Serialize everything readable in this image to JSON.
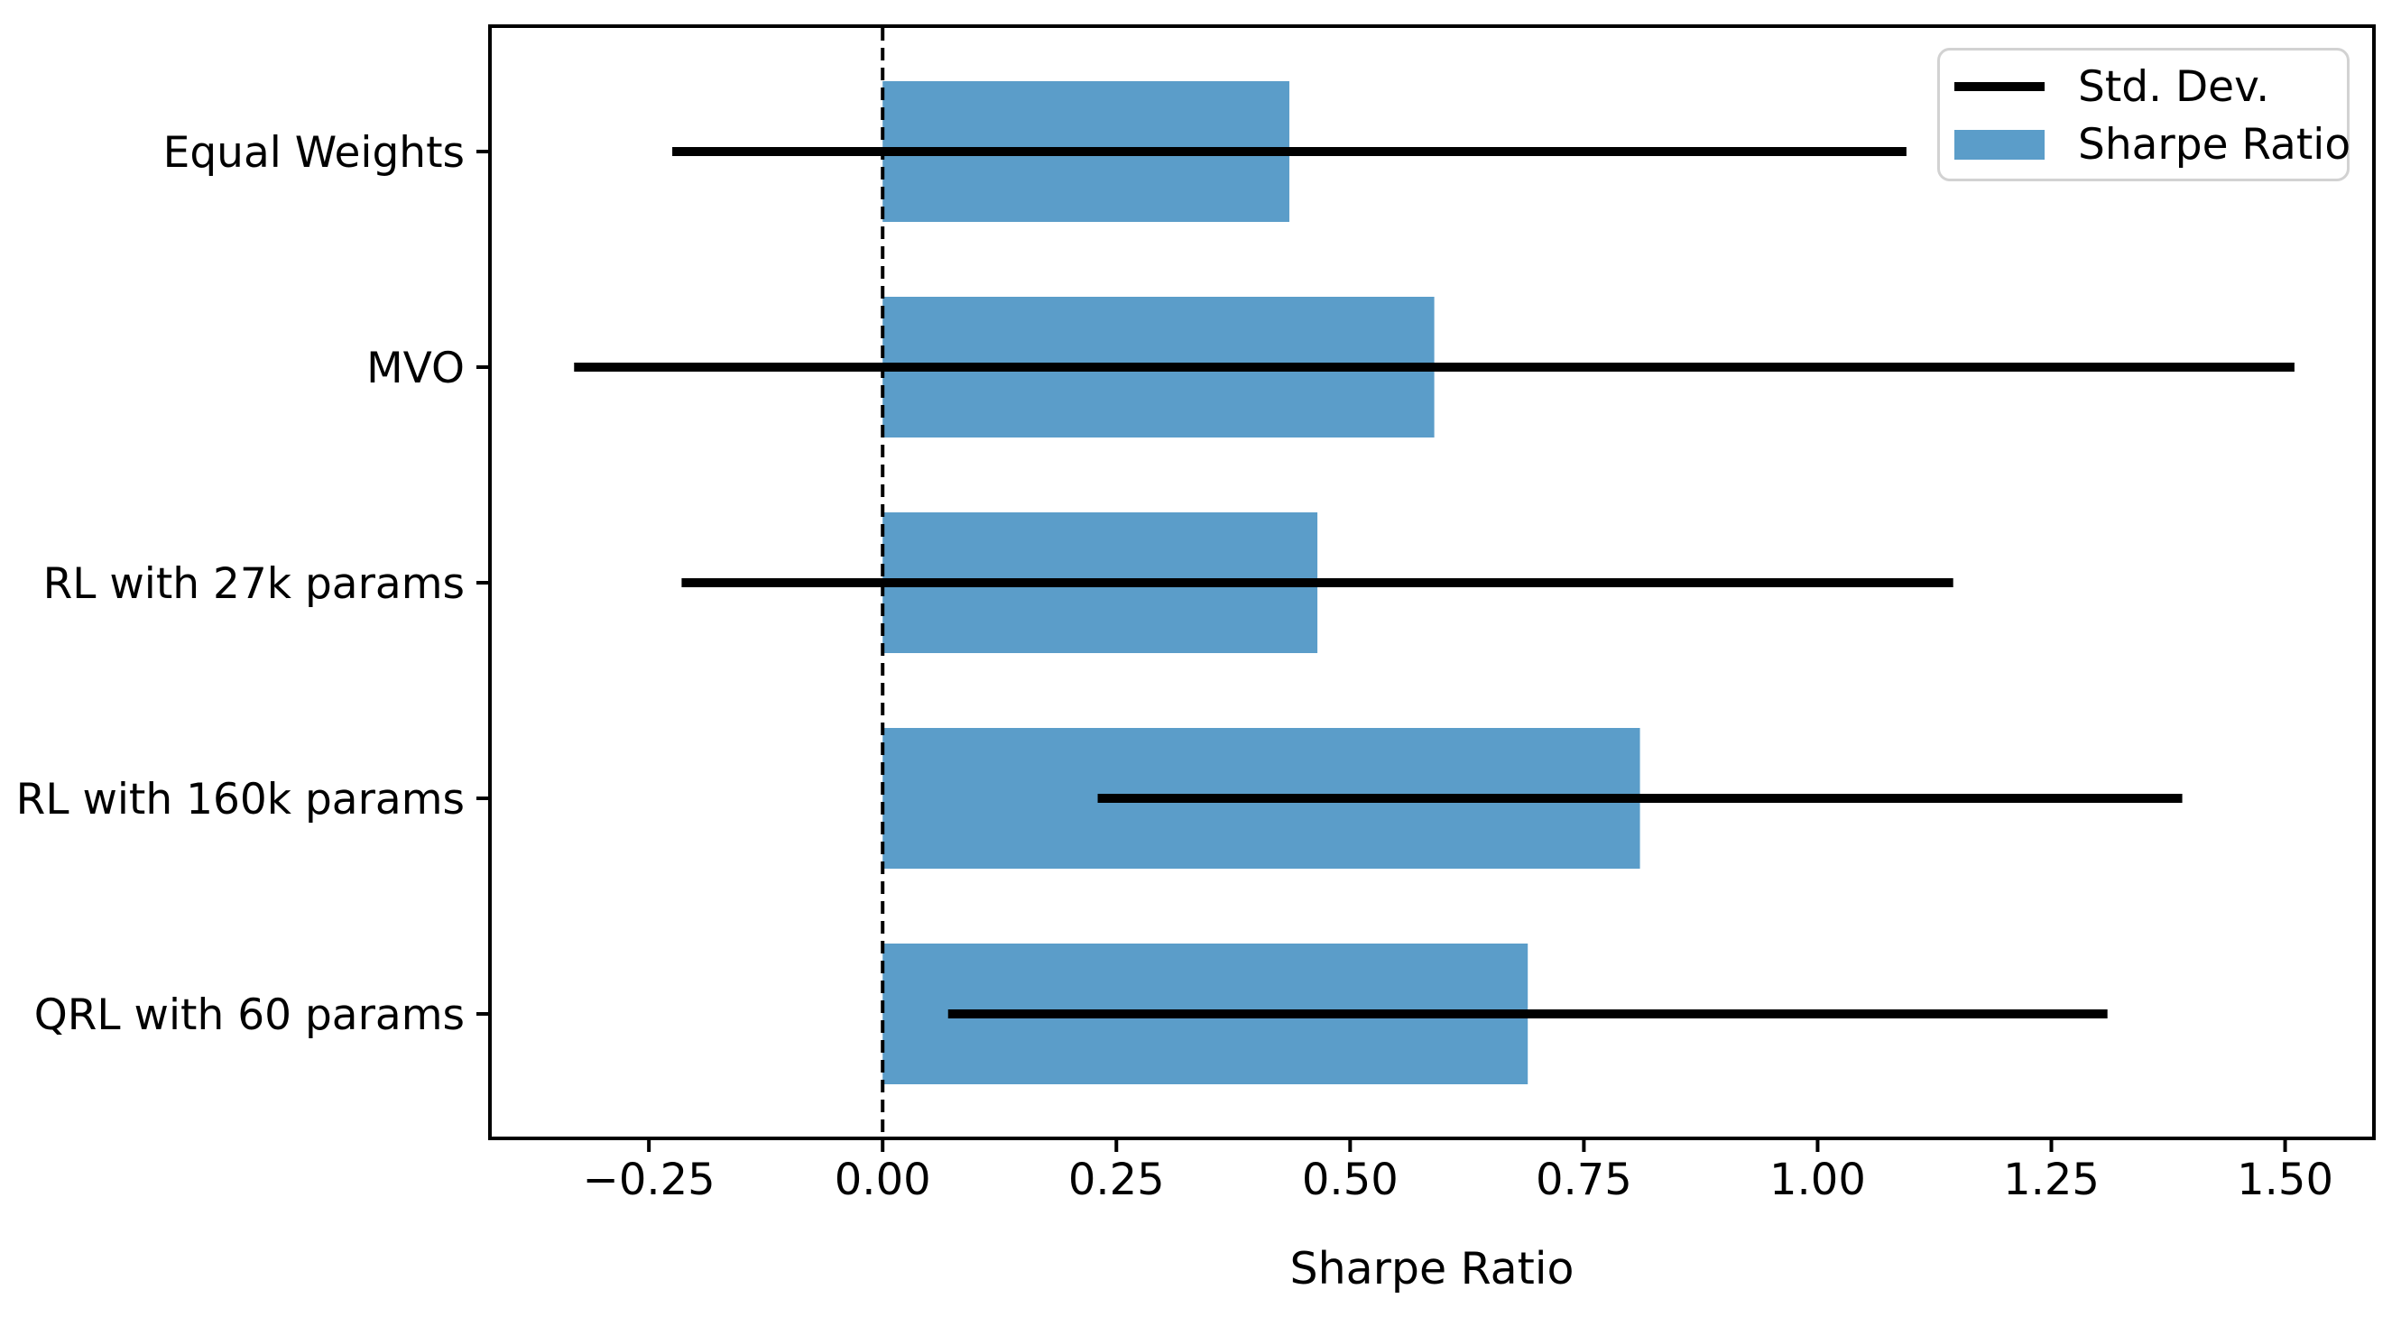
{
  "chart_data": {
    "type": "bar",
    "orientation": "horizontal",
    "title": "",
    "xlabel": "Sharpe Ratio",
    "categories": [
      "Equal Weights",
      "MVO",
      "RL with 27k params",
      "RL with 160k params",
      "QRL with 60 params"
    ],
    "series": [
      {
        "name": "Std. Dev.",
        "style": "error-line",
        "color": "#000000",
        "values": [
          0.66,
          0.92,
          0.68,
          0.58,
          0.62
        ]
      },
      {
        "name": "Sharpe Ratio",
        "style": "bar",
        "color": "#5B9DC9",
        "values": [
          0.435,
          0.59,
          0.465,
          0.81,
          0.69
        ]
      }
    ],
    "error_intervals": [
      [
        -0.225,
        1.095
      ],
      [
        -0.33,
        1.51
      ],
      [
        -0.215,
        1.145
      ],
      [
        0.23,
        1.39
      ],
      [
        0.07,
        1.31
      ]
    ],
    "xticks": {
      "values": [
        -0.25,
        0.0,
        0.25,
        0.5,
        0.75,
        1.0,
        1.25,
        1.5
      ],
      "labels": [
        "−0.25",
        "0.00",
        "0.25",
        "0.50",
        "0.75",
        "1.00",
        "1.25",
        "1.50"
      ]
    },
    "xlim": [
      -0.42,
      1.595
    ],
    "zero_line": {
      "x": 0,
      "style": "dashed",
      "color": "#000000"
    },
    "legend": {
      "position": "upper right",
      "entries": [
        "Std. Dev.",
        "Sharpe Ratio"
      ]
    },
    "grid": false,
    "background": "#ffffff",
    "axis_color": "#000000"
  }
}
